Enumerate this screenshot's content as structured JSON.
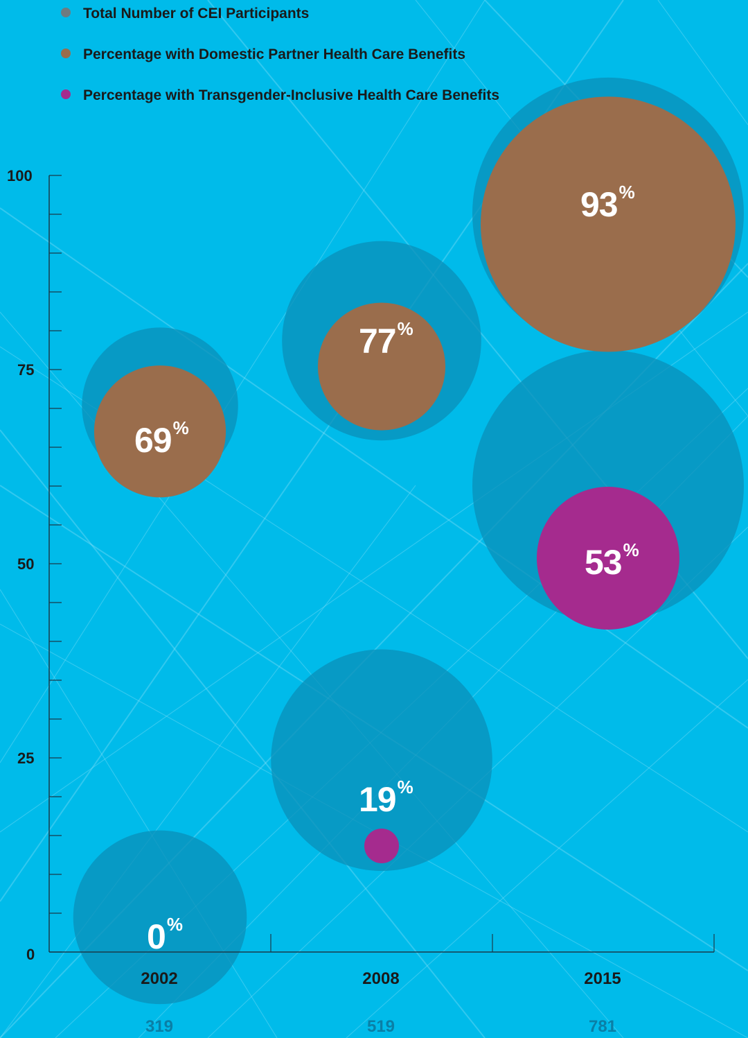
{
  "chart_data": {
    "type": "scatter",
    "legend": [
      {
        "name": "Total Number of CEI Participants",
        "color": "#6f7b80"
      },
      {
        "name": "Percentage with Domestic Partner Health Care Benefits",
        "color": "#9a6d4c"
      },
      {
        "name": "Percentage with Transgender-Inclusive Health Care Benefits",
        "color": "#a52b8e"
      }
    ],
    "y_ticks": [
      "0",
      "25",
      "50",
      "75",
      "100"
    ],
    "ylim": [
      0,
      100
    ],
    "categories": [
      "2002",
      "2008",
      "2015"
    ],
    "participants": [
      "319",
      "519",
      "781"
    ],
    "participant_values": [
      319,
      519,
      781
    ],
    "series": [
      {
        "name": "Percentage with Domestic Partner Health Care Benefits",
        "values": [
          69,
          77,
          93
        ],
        "labels": [
          "69",
          "77",
          "93"
        ]
      },
      {
        "name": "Percentage with Transgender-Inclusive Health Care Benefits",
        "values": [
          0,
          19,
          53
        ],
        "labels": [
          "0",
          "19",
          "53"
        ]
      }
    ],
    "percent_symbol": "%"
  }
}
